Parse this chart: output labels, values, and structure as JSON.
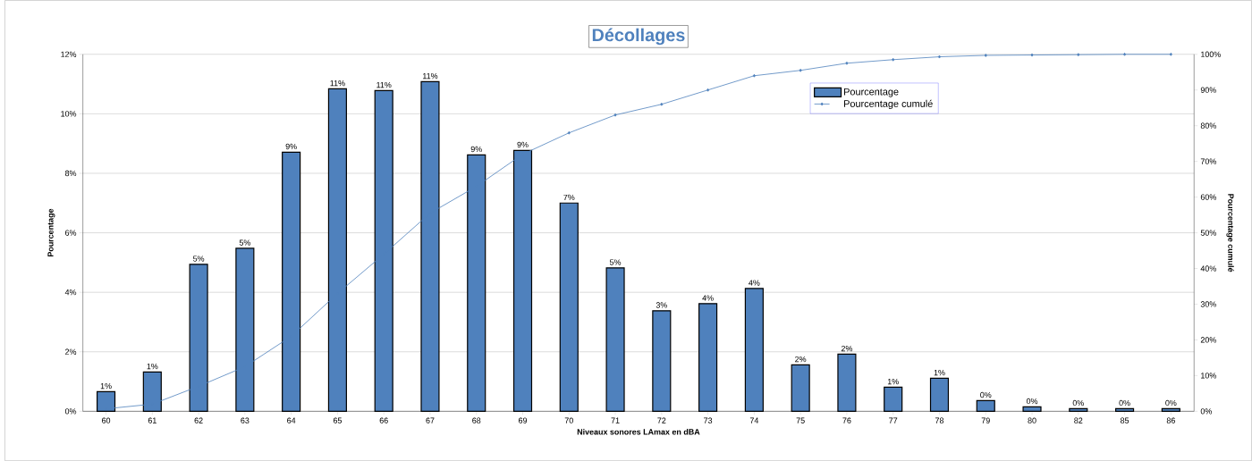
{
  "chart_data": {
    "type": "bar",
    "title": "Décollages",
    "xlabel": "Niveaux sonores LAmax en dBA",
    "ylabel": "Pourcentage",
    "y2label": "Pourcentage cumulé",
    "categories": [
      "60",
      "61",
      "62",
      "63",
      "64",
      "65",
      "66",
      "67",
      "68",
      "69",
      "70",
      "71",
      "72",
      "73",
      "74",
      "75",
      "76",
      "77",
      "78",
      "79",
      "80",
      "82",
      "85",
      "86"
    ],
    "series": [
      {
        "name": "Pourcentage",
        "color": "#4f81bd",
        "values": [
          0.66,
          1.32,
          4.94,
          5.48,
          8.71,
          10.84,
          10.78,
          11.08,
          8.62,
          8.77,
          7.0,
          4.82,
          3.38,
          3.62,
          4.13,
          1.56,
          1.92,
          0.81,
          1.11,
          0.36,
          0.15,
          0.09,
          0.09,
          0.09
        ],
        "value_labels": [
          "1%",
          "1%",
          "5%",
          "5%",
          "9%",
          "11%",
          "11%",
          "11%",
          "9%",
          "9%",
          "7%",
          "5%",
          "3%",
          "4%",
          "4%",
          "2%",
          "2%",
          "1%",
          "1%",
          "0%",
          "0%",
          "0%",
          "0%",
          "0%"
        ]
      },
      {
        "name": "Pourcentage cumulé",
        "type": "line",
        "axis": "y2",
        "color": "#4f81bd",
        "values": [
          0.7,
          2,
          7,
          12.5,
          21,
          33,
          44,
          55.5,
          63,
          72,
          78,
          83,
          86,
          90,
          94,
          95.5,
          97.5,
          98.5,
          99.3,
          99.7,
          99.8,
          99.9,
          100,
          100
        ]
      }
    ],
    "ylim": [
      0,
      12
    ],
    "yticks": [
      {
        "value": 0,
        "label": "0%"
      },
      {
        "value": 2,
        "label": "2%"
      },
      {
        "value": 4,
        "label": "4%"
      },
      {
        "value": 6,
        "label": "6%"
      },
      {
        "value": 8,
        "label": "8%"
      },
      {
        "value": 10,
        "label": "10%"
      },
      {
        "value": 12,
        "label": "12%"
      }
    ],
    "y2lim": [
      0,
      100
    ],
    "y2ticks": [
      {
        "value": 0,
        "label": "0%"
      },
      {
        "value": 10,
        "label": "10%"
      },
      {
        "value": 20,
        "label": "20%"
      },
      {
        "value": 30,
        "label": "30%"
      },
      {
        "value": 40,
        "label": "40%"
      },
      {
        "value": 50,
        "label": "50%"
      },
      {
        "value": 60,
        "label": "60%"
      },
      {
        "value": 70,
        "label": "70%"
      },
      {
        "value": 80,
        "label": "80%"
      },
      {
        "value": 90,
        "label": "90%"
      },
      {
        "value": 100,
        "label": "100%"
      }
    ],
    "grid": "y",
    "legend": "top right",
    "marker": "diamond",
    "line_style": "solid"
  }
}
